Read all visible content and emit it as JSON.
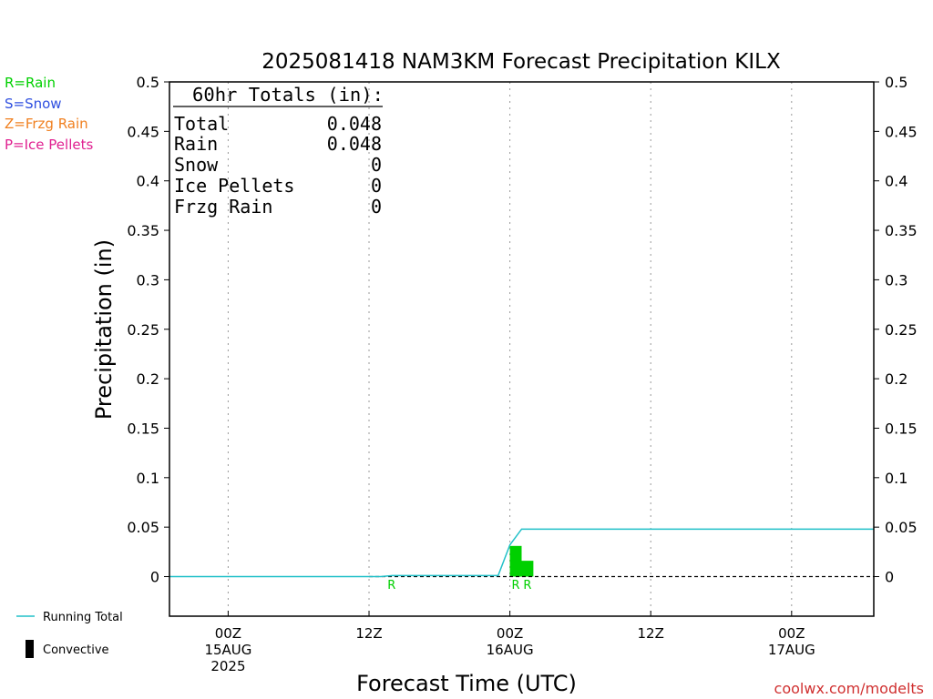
{
  "chart_data": {
    "type": "bar",
    "title": "2025081418 NAM3KM Forecast Precipitation KILX",
    "xlabel": "Forecast Time (UTC)",
    "ylabel": "Precipitation (in)",
    "ylim": [
      -0.04,
      0.5
    ],
    "yticks": [
      0,
      0.05,
      0.1,
      0.15,
      0.2,
      0.25,
      0.3,
      0.35,
      0.4,
      0.45,
      0.5
    ],
    "ytick_labels": [
      "0",
      "0.05",
      "0.1",
      "0.15",
      "0.2",
      "0.25",
      "0.3",
      "0.35",
      "0.4",
      "0.45",
      "0.5"
    ],
    "x_unit": "forecast hour",
    "xlim": [
      -5,
      55
    ],
    "xticks": [
      {
        "hour": 0,
        "lines": [
          "00Z",
          "15AUG",
          "2025"
        ]
      },
      {
        "hour": 12,
        "lines": [
          "12Z"
        ]
      },
      {
        "hour": 24,
        "lines": [
          "00Z",
          "16AUG"
        ]
      },
      {
        "hour": 36,
        "lines": [
          "12Z"
        ]
      },
      {
        "hour": 48,
        "lines": [
          "00Z",
          "17AUG"
        ]
      }
    ],
    "grid": true,
    "bars": [
      {
        "hour": 24,
        "value": 0.031,
        "ptype": "R",
        "color": "#00d000"
      },
      {
        "hour": 25,
        "value": 0.016,
        "ptype": "R",
        "color": "#00d000"
      }
    ],
    "trace_markers": [
      {
        "hour": 14,
        "label": "R"
      }
    ],
    "running_total": {
      "color": "#20c0c8",
      "x": [
        -5,
        13,
        14,
        23,
        24,
        25,
        55
      ],
      "y": [
        0,
        0,
        0.001,
        0.001,
        0.032,
        0.048,
        0.048
      ]
    },
    "zero_line": "dashed",
    "totals": {
      "heading": "60hr Totals (in):",
      "rows": [
        {
          "label": "Total",
          "value": "0.048"
        },
        {
          "label": "Rain",
          "value": "0.048"
        },
        {
          "label": "Snow",
          "value": "0"
        },
        {
          "label": "Ice Pellets",
          "value": "0"
        },
        {
          "label": "Frzg Rain",
          "value": "0"
        }
      ]
    },
    "legend_types": [
      {
        "text": "R=Rain",
        "color": "#00d000"
      },
      {
        "text": "S=Snow",
        "color": "#3050e0"
      },
      {
        "text": "Z=Frzg Rain",
        "color": "#f08020"
      },
      {
        "text": "P=Ice Pellets",
        "color": "#e02090"
      }
    ],
    "legend_bottom": {
      "running_total": "Running Total",
      "convective": "Convective"
    },
    "credit": "coolwx.com/modelts",
    "credit_color": "#d03030"
  }
}
